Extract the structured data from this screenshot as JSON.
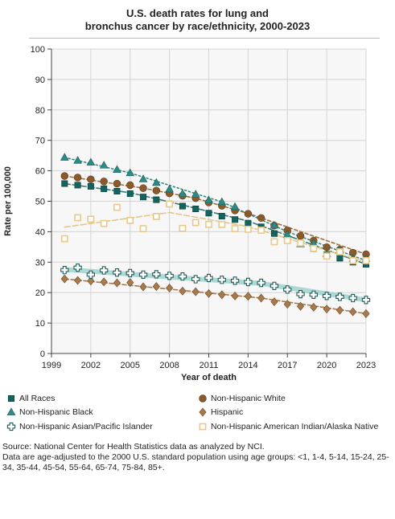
{
  "chart_data": {
    "type": "line",
    "title_lines": [
      "U.S. death rates for lung and",
      "bronchus cancer by race/ethnicity, 2000-2023"
    ],
    "xlabel": "Year of death",
    "ylabel": "Rate per 100,000",
    "xlim": [
      1999,
      2023
    ],
    "ylim": [
      0,
      100
    ],
    "x_ticks": [
      1999,
      2002,
      2005,
      2008,
      2011,
      2014,
      2017,
      2020,
      2023
    ],
    "y_ticks": [
      0,
      10,
      20,
      30,
      40,
      50,
      60,
      70,
      80,
      90,
      100
    ],
    "grid": true,
    "legend_position": "bottom",
    "x": [
      2000,
      2001,
      2002,
      2003,
      2004,
      2005,
      2006,
      2007,
      2008,
      2009,
      2010,
      2011,
      2012,
      2013,
      2014,
      2015,
      2016,
      2017,
      2018,
      2019,
      2020,
      2021,
      2022,
      2023
    ],
    "series": [
      {
        "name": "All Races",
        "marker": "square",
        "color": "#13635e",
        "trend_color": "#3a7d78",
        "values": [
          55.8,
          55.3,
          54.9,
          54.1,
          53.3,
          52.5,
          51.4,
          50.5,
          49.2,
          48.4,
          47.5,
          46.1,
          45.1,
          44.0,
          42.8,
          41.6,
          39.4,
          37.7,
          36.0,
          34.4,
          32.4,
          31.3,
          30.0,
          29.3
        ],
        "trend": [
          [
            2000,
            55.8
          ],
          [
            2005,
            52.8
          ],
          [
            2008,
            49.8
          ],
          [
            2014,
            43.5
          ],
          [
            2023,
            29.3
          ]
        ]
      },
      {
        "name": "Non-Hispanic White",
        "marker": "circle",
        "color": "#8b5a2b",
        "trend_color": "#a26f3c",
        "values": [
          58.3,
          57.8,
          57.2,
          56.5,
          55.8,
          55.3,
          54.3,
          53.5,
          52.6,
          51.8,
          51.0,
          49.6,
          48.5,
          47.0,
          45.9,
          44.5,
          42.0,
          40.4,
          38.6,
          37.1,
          34.9,
          34.1,
          33.1,
          32.6
        ],
        "trend": [
          [
            2000,
            58.3
          ],
          [
            2006,
            54.3
          ],
          [
            2010,
            51.0
          ],
          [
            2014,
            46.0
          ],
          [
            2023,
            32.6
          ]
        ]
      },
      {
        "name": "Non-Hispanic Black",
        "marker": "triangle",
        "color": "#2e8a85",
        "trend_color": "#2e8a85",
        "values": [
          64.4,
          63.4,
          62.8,
          61.8,
          60.4,
          59.3,
          57.3,
          56.1,
          54.0,
          52.5,
          52.3,
          50.4,
          49.8,
          48.2,
          null,
          null,
          42.1,
          39.0,
          36.0,
          36.2,
          32.8,
          33.9,
          31.2,
          31.2
        ],
        "trend": [
          [
            2000,
            64.4
          ],
          [
            2005,
            59.3
          ],
          [
            2012,
            49.8
          ],
          [
            2017,
            40.0
          ],
          [
            2023,
            30.5
          ]
        ]
      },
      {
        "name": "Hispanic",
        "marker": "diamond",
        "color": "#a8794a",
        "trend_color": "#a8794a",
        "values": [
          24.5,
          24.0,
          23.8,
          23.5,
          23.2,
          23.3,
          21.9,
          22.0,
          21.5,
          20.5,
          20.3,
          19.7,
          19.3,
          18.9,
          18.8,
          18.2,
          17.0,
          16.2,
          15.5,
          15.2,
          14.6,
          14.2,
          13.7,
          13.1
        ],
        "trend": [
          [
            2000,
            24.5
          ],
          [
            2015,
            18.2
          ],
          [
            2023,
            13.1
          ]
        ]
      },
      {
        "name": "Non-Hispanic Asian/Pacific Islander",
        "marker": "plus",
        "color": "#1f5a57",
        "trend_color": "#9fd2cf",
        "values": [
          27.4,
          28.2,
          25.9,
          27.3,
          26.6,
          26.4,
          25.9,
          26.0,
          25.5,
          25.3,
          24.4,
          24.8,
          24.2,
          23.9,
          23.5,
          23.2,
          22.2,
          21.0,
          19.5,
          19.3,
          18.9,
          18.6,
          18.2,
          17.6
        ],
        "trend": [
          [
            2000,
            27.6
          ],
          [
            2015,
            23.0
          ],
          [
            2023,
            17.6
          ]
        ]
      },
      {
        "name": "Non-Hispanic American Indian/Alaska Native",
        "marker": "open-square",
        "color": "#e8c98a",
        "trend_color": "#e3c68c",
        "values": [
          37.7,
          44.6,
          44.1,
          42.7,
          48.0,
          43.7,
          41.0,
          45.0,
          49.1,
          41.1,
          43.0,
          42.4,
          42.4,
          41.0,
          40.8,
          40.5,
          36.7,
          37.1,
          36.3,
          34.5,
          32.0,
          33.4,
          30.5,
          30.5
        ],
        "trend": [
          [
            2000,
            41.5
          ],
          [
            2008,
            46.3
          ],
          [
            2014,
            41.7
          ],
          [
            2023,
            30.0
          ]
        ]
      }
    ]
  },
  "legend_layout": [
    {
      "series_index": 0,
      "label": "All Races"
    },
    {
      "series_index": 1,
      "label": "Non-Hispanic White"
    },
    {
      "series_index": 2,
      "label": "Non-Hispanic Black"
    },
    {
      "series_index": 3,
      "label": "Hispanic"
    },
    {
      "series_index": 4,
      "label": "Non-Hispanic Asian/Pacific Islander"
    },
    {
      "series_index": 5,
      "label": "Non-Hispanic American Indian/Alaska Native"
    }
  ],
  "notes": {
    "source": "Source: National Center for Health Statistics data as analyzed by NCI.",
    "adjustment": "Data are age-adjusted to the 2000 U.S. standard population using age groups: <1, 1-4, 5-14, 15-24, 25-34, 35-44, 45-54, 55-64, 65-74, 75-84, 85+."
  }
}
